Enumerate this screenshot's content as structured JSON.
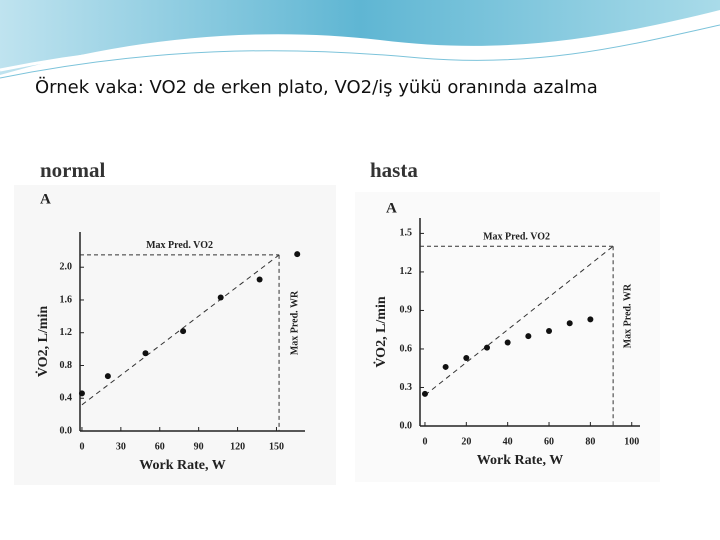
{
  "slide": {
    "title": "Örnek vaka: VO2 de erken plato, VO2/iş yükü oranında azalma",
    "labels": [
      "normal",
      "hasta"
    ]
  },
  "chart_data": [
    {
      "type": "scatter",
      "panel": "A",
      "x_label": "Work Rate, W",
      "y_label": "V̇O2, L/min",
      "x": [
        0,
        20,
        49,
        78,
        107,
        137,
        166
      ],
      "values": [
        0.46,
        0.67,
        0.95,
        1.22,
        1.63,
        1.85,
        2.16
      ],
      "color": "#111111",
      "xlim": [
        -1.5,
        172
      ],
      "ylim": [
        0,
        2.43
      ],
      "xticks": [
        0,
        30,
        60,
        90,
        120,
        150
      ],
      "yticks": [
        {
          "value": 0,
          "label": "0.0"
        },
        0.4,
        0.8,
        1.2,
        1.6,
        {
          "value": 2,
          "label": "2.0"
        }
      ],
      "prediction": {
        "x": [
          0,
          152
        ],
        "y": [
          0.32,
          2.15
        ]
      },
      "max_pred_vo2": {
        "label": "Max Pred. VO2",
        "value": 2.15
      },
      "max_pred_wr": {
        "label": "Max Pred. WR",
        "value": 152
      }
    },
    {
      "type": "scatter",
      "panel": "A",
      "x_label": "Work Rate, W",
      "y_label": "V̇O2, L/min",
      "x": [
        0,
        10,
        20,
        30,
        40,
        50,
        60,
        70,
        80
      ],
      "values": [
        0.25,
        0.46,
        0.53,
        0.61,
        0.65,
        0.7,
        0.74,
        0.8,
        0.83
      ],
      "color": "#111111",
      "xlim": [
        -2.4,
        104
      ],
      "ylim": [
        0,
        1.62
      ],
      "xticks": [
        0,
        20,
        40,
        60,
        80,
        100
      ],
      "yticks": [
        {
          "value": 0,
          "label": "0.0"
        },
        0.3,
        0.6,
        0.9,
        1.2,
        1.5
      ],
      "prediction": {
        "x": [
          0,
          91
        ],
        "y": [
          0.24,
          1.4
        ]
      },
      "max_pred_vo2": {
        "label": "Max Pred. VO2",
        "value": 1.4
      },
      "max_pred_wr": {
        "label": "Max Pred. WR",
        "value": 91
      }
    }
  ]
}
